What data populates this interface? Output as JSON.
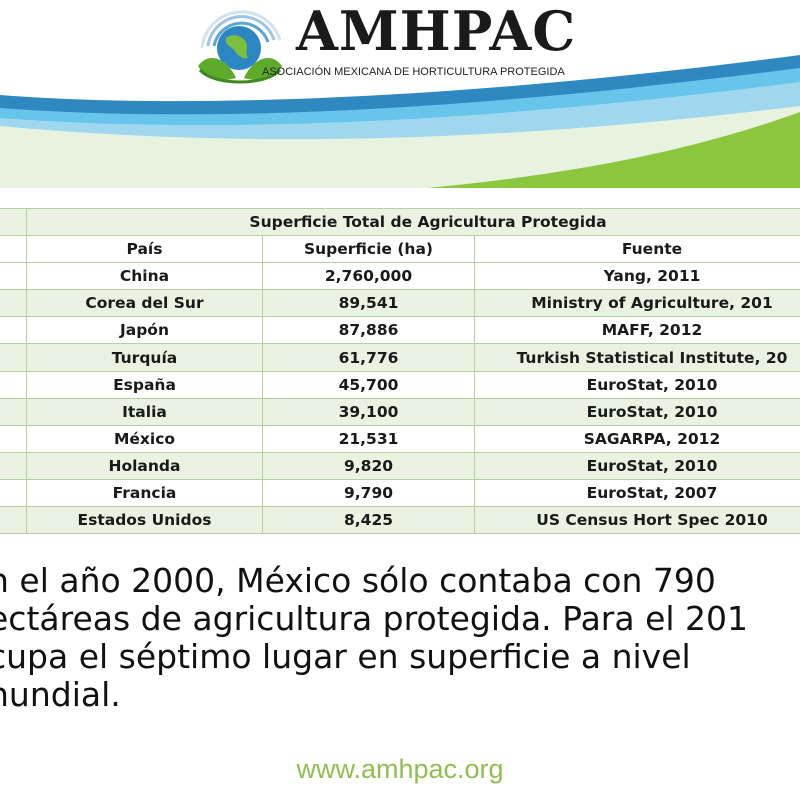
{
  "logo": {
    "title": "AMHPAC",
    "subtitle": "ASOCIACIÓN MEXICANA DE HORTICULTURA PROTEGIDA"
  },
  "colors": {
    "accent_green": "#8cc63f",
    "accent_blue": "#67c4ea",
    "table_border": "#b5cf9d",
    "table_band": "#eaf3e2",
    "website_green": "#8fbf4e"
  },
  "table": {
    "caption": "Superficie Total de Agricultura Protegida",
    "headers": [
      "País",
      "Superficie (ha)",
      "Fuente"
    ],
    "rows": [
      {
        "country": "China",
        "area": "2,760,000",
        "source": "Yang, 2011"
      },
      {
        "country": "Corea del Sur",
        "area": "89,541",
        "source": "Ministry of Agriculture, 201"
      },
      {
        "country": "Japón",
        "area": "87,886",
        "source": "MAFF, 2012"
      },
      {
        "country": "Turquía",
        "area": "61,776",
        "source": "Turkish Statistical Institute, 20"
      },
      {
        "country": "España",
        "area": "45,700",
        "source": "EuroStat, 2010"
      },
      {
        "country": "Italia",
        "area": "39,100",
        "source": "EuroStat, 2010"
      },
      {
        "country": "México",
        "area": "21,531",
        "source": "SAGARPA, 2012"
      },
      {
        "country": "Holanda",
        "area": "9,820",
        "source": "EuroStat, 2010"
      },
      {
        "country": "Francia",
        "area": "9,790",
        "source": "EuroStat, 2007"
      },
      {
        "country": "Estados Unidos",
        "area": "8,425",
        "source": "US Census Hort Spec 2010"
      }
    ]
  },
  "summary": {
    "lines": [
      "n el año 2000, México sólo contaba con 790",
      "ectáreas de agricultura protegida. Para el 201",
      "cupa el séptimo lugar en superficie a nivel",
      "nundial."
    ]
  },
  "footer": {
    "website": "www.amhpac.org"
  }
}
